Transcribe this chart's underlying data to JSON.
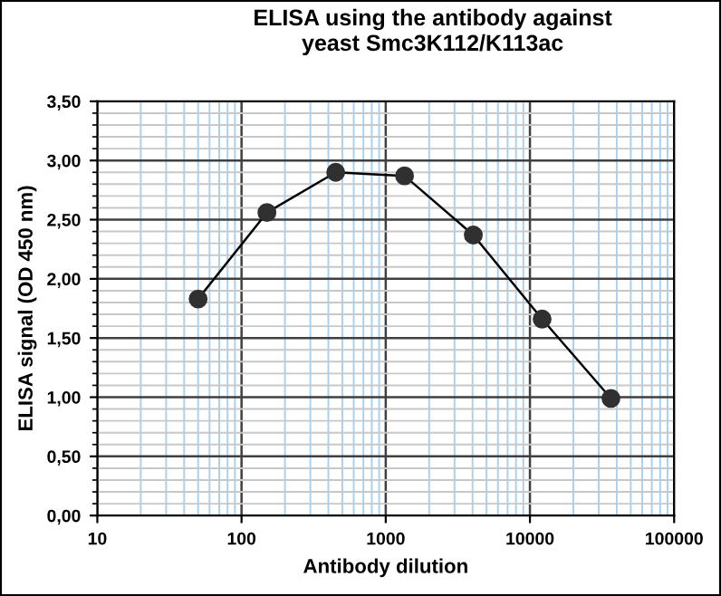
{
  "chart_data": {
    "type": "line",
    "title": "ELISA using the antibody against\nyeast Smc3K112/K113ac",
    "xlabel": "Antibody dilution",
    "ylabel": "ELISA signal (OD 450 nm)",
    "log": "x",
    "grid": true,
    "marker": "circle",
    "line_style": "solid",
    "legend": false,
    "x": [
      50,
      150,
      450,
      1350,
      4050,
      12150,
      36450
    ],
    "series": [
      {
        "color": "#303030",
        "values": [
          1.83,
          2.56,
          2.9,
          2.87,
          2.37,
          1.66,
          0.99
        ]
      }
    ],
    "xlim": [
      10,
      100000
    ],
    "xticks": [
      10,
      {
        "value": 20,
        "label": null
      },
      {
        "value": 30,
        "label": null
      },
      {
        "value": 40,
        "label": null
      },
      {
        "value": 50,
        "label": null
      },
      {
        "value": 60,
        "label": null
      },
      {
        "value": 70,
        "label": null
      },
      {
        "value": 80,
        "label": null
      },
      {
        "value": 90,
        "label": null
      },
      100,
      {
        "value": 200,
        "label": null
      },
      {
        "value": 300,
        "label": null
      },
      {
        "value": 400,
        "label": null
      },
      {
        "value": 500,
        "label": null
      },
      {
        "value": 600,
        "label": null
      },
      {
        "value": 700,
        "label": null
      },
      {
        "value": 800,
        "label": null
      },
      {
        "value": 900,
        "label": null
      },
      1000,
      {
        "value": 2000,
        "label": null
      },
      {
        "value": 3000,
        "label": null
      },
      {
        "value": 4000,
        "label": null
      },
      {
        "value": 5000,
        "label": null
      },
      {
        "value": 6000,
        "label": null
      },
      {
        "value": 7000,
        "label": null
      },
      {
        "value": 8000,
        "label": null
      },
      {
        "value": 9000,
        "label": null
      },
      10000,
      {
        "value": 20000,
        "label": null
      },
      {
        "value": 30000,
        "label": null
      },
      {
        "value": 40000,
        "label": null
      },
      {
        "value": 50000,
        "label": null
      },
      {
        "value": 60000,
        "label": null
      },
      {
        "value": 70000,
        "label": null
      },
      {
        "value": 80000,
        "label": null
      },
      {
        "value": 90000,
        "label": null
      },
      100000
    ],
    "ylim": [
      0,
      3.5
    ],
    "yticks": [
      {
        "value": 0,
        "label": "0,00"
      },
      {
        "value": 0.5,
        "label": "0,50"
      },
      {
        "value": 1,
        "label": "1,00"
      },
      {
        "value": 1.5,
        "label": "1,50"
      },
      {
        "value": 2,
        "label": "2,00"
      },
      {
        "value": 2.5,
        "label": "2,50"
      },
      {
        "value": 3,
        "label": "3,00"
      },
      {
        "value": 3.5,
        "label": "3,50"
      }
    ]
  }
}
